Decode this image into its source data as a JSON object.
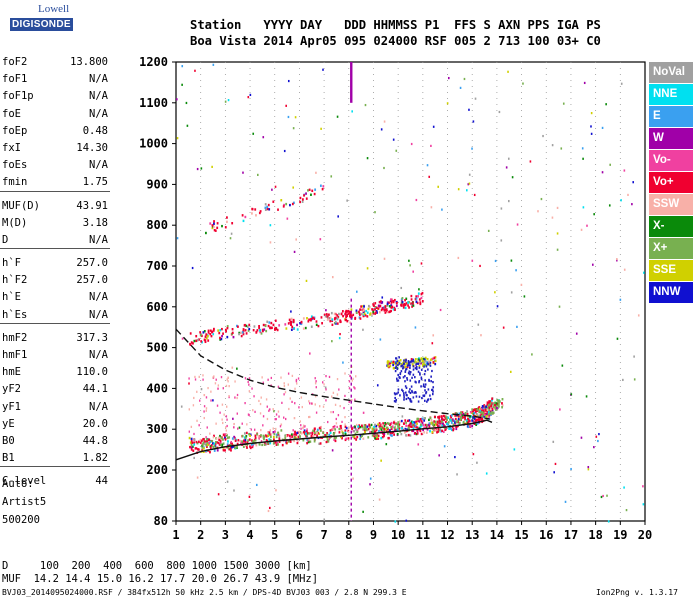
{
  "logo": {
    "line1": "Lowell",
    "line2": "DIGISONDE"
  },
  "header": {
    "row1": "Station   YYYY DAY   DDD HHMMSS P1  FFS S AXN PPS IGA PS",
    "row2": "Boa Vista 2014 Apr05 095 024000 RSF 005 2 713 100 03+ C0"
  },
  "params": [
    {
      "label": "foF2",
      "value": "13.800"
    },
    {
      "label": "foF1",
      "value": "N/A"
    },
    {
      "label": "foF1p",
      "value": "N/A"
    },
    {
      "label": "foE",
      "value": "N/A"
    },
    {
      "label": "foEp",
      "value": "0.48"
    },
    {
      "label": "fxI",
      "value": "14.30"
    },
    {
      "label": "foEs",
      "value": "N/A"
    },
    {
      "label": "fmin",
      "value": "1.75"
    },
    {
      "label": "MUF(D)",
      "value": "43.91"
    },
    {
      "label": "M(D)",
      "value": "3.18"
    },
    {
      "label": "D",
      "value": "N/A"
    },
    {
      "label": "h`F",
      "value": "257.0"
    },
    {
      "label": "h`F2",
      "value": "257.0"
    },
    {
      "label": "h`E",
      "value": "N/A"
    },
    {
      "label": "h`Es",
      "value": "N/A"
    },
    {
      "label": "hmF2",
      "value": "317.3"
    },
    {
      "label": "hmF1",
      "value": "N/A"
    },
    {
      "label": "hmE",
      "value": "110.0"
    },
    {
      "label": "yF2",
      "value": "44.1"
    },
    {
      "label": "yF1",
      "value": "N/A"
    },
    {
      "label": "yE",
      "value": "20.0"
    },
    {
      "label": "B0",
      "value": "44.8"
    },
    {
      "label": "B1",
      "value": "1.82"
    },
    {
      "label": "C-level",
      "value": "44"
    }
  ],
  "auto": {
    "l1": "Auto:",
    "l2": "Artist5",
    "l3": "500200"
  },
  "legend": [
    {
      "label": "NoVal",
      "bg": "#a0a0a0",
      "fg": "#ffffff"
    },
    {
      "label": "NNE",
      "bg": "#00e0f0",
      "fg": "#ffffff"
    },
    {
      "label": "E",
      "bg": "#3aa0f0",
      "fg": "#ffffff"
    },
    {
      "label": "W",
      "bg": "#a000a8",
      "fg": "#ffffff"
    },
    {
      "label": "Vo-",
      "bg": "#f040a0",
      "fg": "#ffffff"
    },
    {
      "label": "Vo+",
      "bg": "#f00030",
      "fg": "#ffffff"
    },
    {
      "label": "SSW",
      "bg": "#f8b0a8",
      "fg": "#ffffff"
    },
    {
      "label": "X-",
      "bg": "#0a8a0a",
      "fg": "#ffffff"
    },
    {
      "label": "X+",
      "bg": "#78b050",
      "fg": "#ffffff"
    },
    {
      "label": "SSE",
      "bg": "#d0d000",
      "fg": "#ffffff"
    },
    {
      "label": "NNW",
      "bg": "#1010d0",
      "fg": "#ffffff"
    }
  ],
  "footer": {
    "d_row": "D     100  200  400  600  800 1000 1500 3000 [km]",
    "muf_row": "MUF  14.2 14.4 15.0 16.2 17.7 20.0 26.7 43.9 [MHz]",
    "file": "BVJ03_2014095024000.RSF / 384fx512h 50 kHz 2.5 km / DPS-4D BVJ03 003 / 2.8 N 299.3 E",
    "version": "Ion2Png v. 1.3.17"
  },
  "chart_data": {
    "type": "scatter",
    "x_ticks": [
      "1",
      "2",
      "3",
      "4",
      "5",
      "6",
      "7",
      "8",
      "9",
      "10",
      "11",
      "12",
      "13",
      "14",
      "15",
      "16",
      "17",
      "18",
      "19",
      "20"
    ],
    "y_ticks": [
      "80",
      "200",
      "300",
      "400",
      "500",
      "600",
      "700",
      "800",
      "900",
      "1000",
      "1100",
      "1200"
    ],
    "xlim": [
      1,
      20
    ],
    "ylim": [
      80,
      1200
    ],
    "grid": "dotted vertical lines at integer MHz",
    "traces": [
      {
        "name": "F2 O-trace",
        "color": "#f00030",
        "x": [
          1.5,
          3,
          5,
          7,
          9,
          10,
          11,
          12,
          13,
          13.5,
          13.8
        ],
        "y": [
          262,
          270,
          280,
          288,
          298,
          303,
          310,
          318,
          330,
          345,
          360
        ]
      },
      {
        "name": "F2 X-trace",
        "color": "#78b050",
        "x": [
          2.0,
          4,
          6,
          8,
          10,
          12,
          13.5,
          14.2
        ],
        "y": [
          262,
          275,
          285,
          295,
          308,
          322,
          345,
          370
        ]
      },
      {
        "name": "F2 second hop",
        "color": "#f00030",
        "x": [
          1.5,
          3,
          5,
          7,
          8,
          9,
          10,
          11
        ],
        "y": [
          522,
          540,
          555,
          570,
          582,
          598,
          610,
          625
        ]
      },
      {
        "name": "F2 third hop",
        "color": "#f00030",
        "x": [
          2,
          3,
          4,
          5,
          6,
          7
        ],
        "y": [
          790,
          810,
          830,
          850,
          870,
          895
        ]
      },
      {
        "name": "Es/E layer echoes",
        "color": "#d0d000",
        "x": [
          9.5,
          10,
          10.5,
          11,
          11.5
        ],
        "y": [
          460,
          462,
          465,
          468,
          470
        ]
      }
    ],
    "profile_solid": {
      "x": [
        1,
        2,
        3,
        4,
        5,
        6,
        7,
        8,
        9,
        10,
        11,
        12,
        13,
        13.6,
        13.8
      ],
      "y": [
        225,
        245,
        257,
        265,
        271,
        276,
        281,
        285,
        290,
        295,
        301,
        306,
        314,
        322,
        317
      ]
    },
    "profile_dashed": {
      "x": [
        1,
        2,
        3,
        4,
        5,
        6,
        7,
        8,
        9,
        10,
        11,
        12,
        13,
        13.7
      ],
      "y": [
        545,
        480,
        445,
        420,
        403,
        390,
        380,
        371,
        362,
        353,
        345,
        338,
        332,
        325
      ]
    },
    "vertical_spike": {
      "x": 8.1,
      "y": [
        80,
        1200
      ]
    }
  }
}
